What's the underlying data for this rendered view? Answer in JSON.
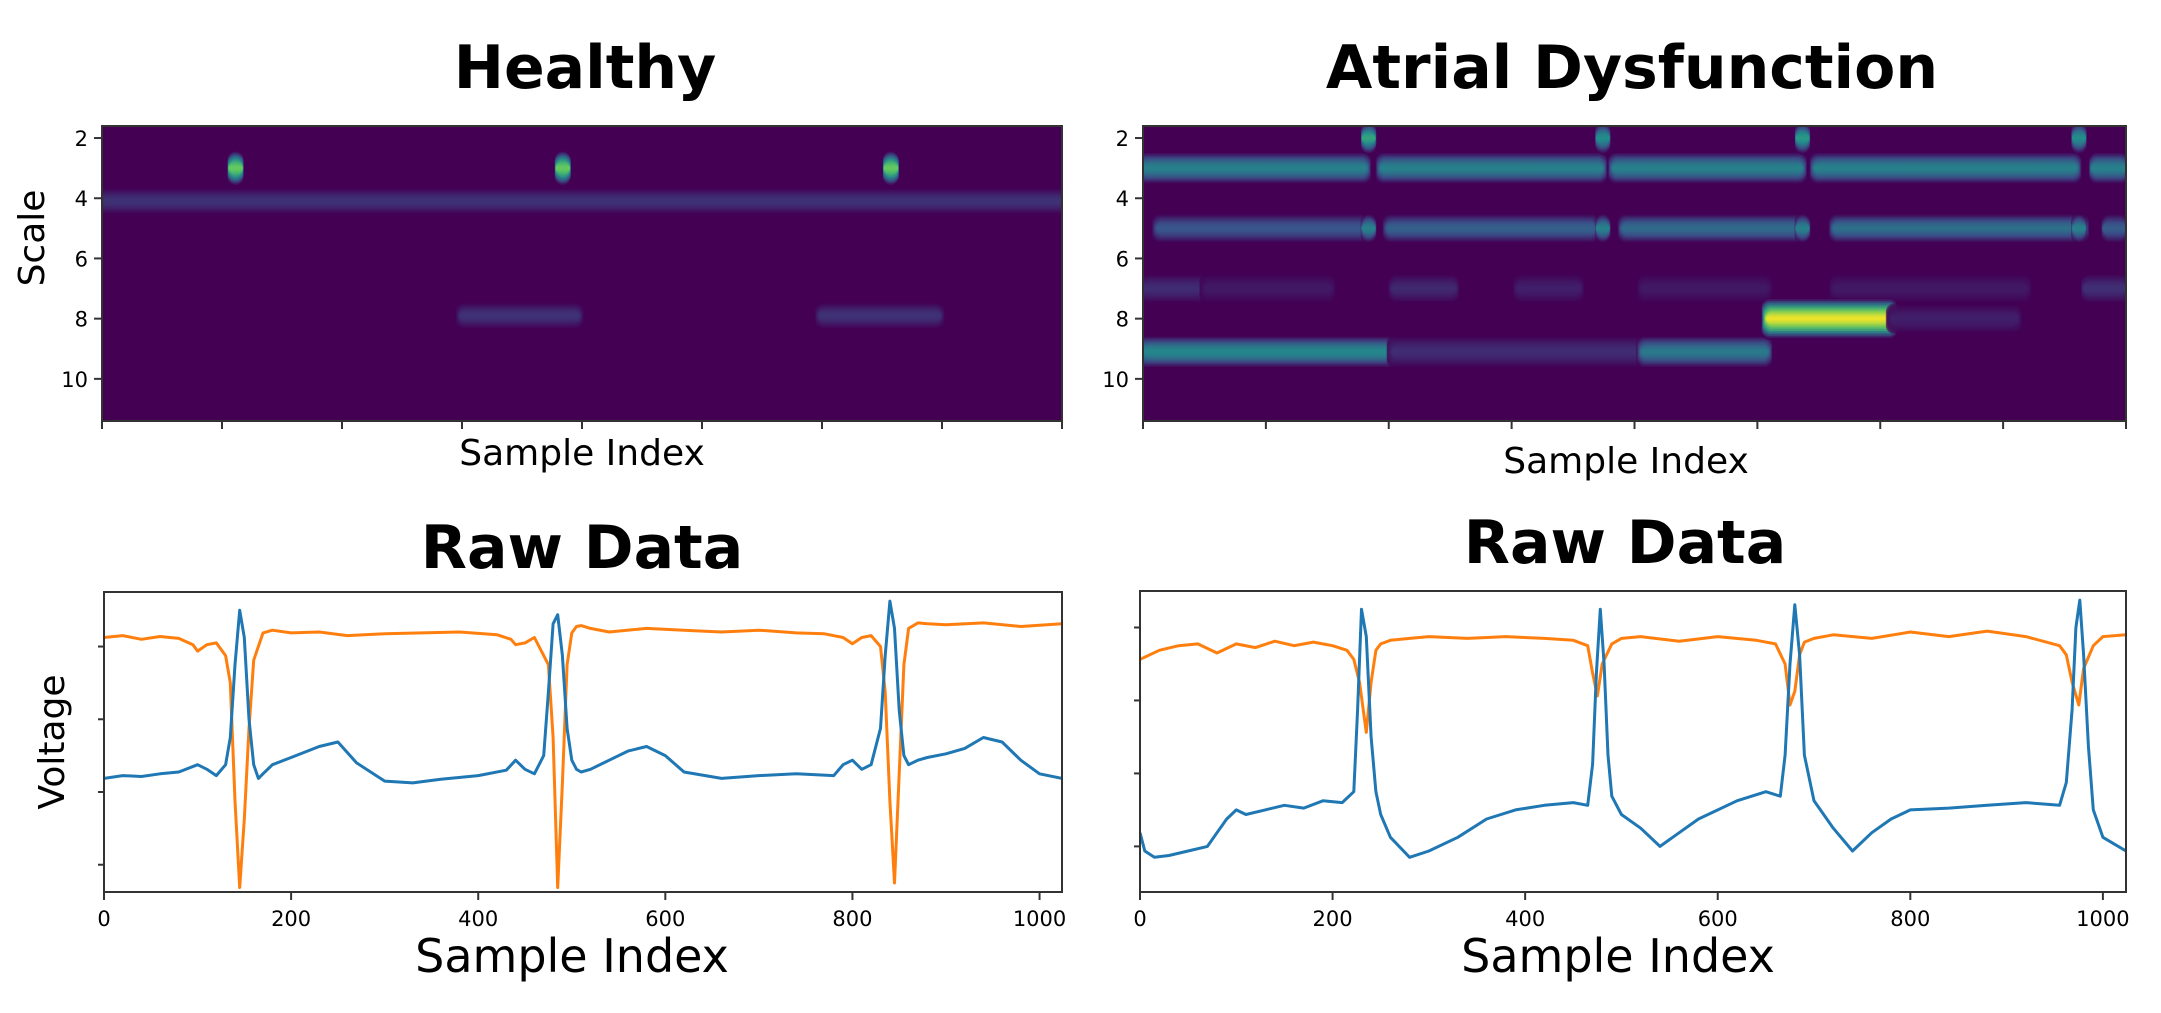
{
  "colors": {
    "heatmap_background": "#440154",
    "channel_blue": "#1f77b4",
    "channel_orange": "#ff7f0e"
  },
  "chart_data": [
    {
      "type": "heatmap",
      "panel": "healthy-scalogram",
      "title": "Healthy",
      "xlabel": "Sample Index",
      "ylabel": "Scale",
      "yticks": [
        2,
        4,
        6,
        8,
        10
      ],
      "ylim": [
        1.6,
        11.4
      ],
      "xlim": [
        0,
        1024
      ],
      "vmax": 1,
      "colormap": "viridis",
      "blobs": [
        {
          "x0": 0,
          "x1": 1024,
          "scale": 4.1,
          "intensity": 0.16,
          "spread": 0.45
        },
        {
          "x0": 135,
          "x1": 150,
          "scale": 3.0,
          "intensity": 0.78,
          "spread": 0.6
        },
        {
          "x0": 484,
          "x1": 499,
          "scale": 3.0,
          "intensity": 0.78,
          "spread": 0.6
        },
        {
          "x0": 834,
          "x1": 849,
          "scale": 3.0,
          "intensity": 0.78,
          "spread": 0.6
        },
        {
          "x0": 383,
          "x1": 508,
          "scale": 7.9,
          "intensity": 0.16,
          "spread": 0.45
        },
        {
          "x0": 766,
          "x1": 893,
          "scale": 7.9,
          "intensity": 0.16,
          "spread": 0.45
        }
      ]
    },
    {
      "type": "heatmap",
      "panel": "atrial-scalogram",
      "title": "Atrial Dysfunction",
      "xlabel": "Sample Index",
      "ylabel": "",
      "yticks": [
        2,
        4,
        6,
        8,
        10
      ],
      "ylim": [
        1.6,
        11.4
      ],
      "xlim": [
        0,
        1024
      ],
      "vmax": 1,
      "colormap": "viridis",
      "blobs": [
        {
          "x0": 0,
          "x1": 232,
          "scale": 3.0,
          "intensity": 0.45,
          "spread": 0.55
        },
        {
          "x0": 248,
          "x1": 478,
          "scale": 3.0,
          "intensity": 0.45,
          "spread": 0.55
        },
        {
          "x0": 490,
          "x1": 686,
          "scale": 3.0,
          "intensity": 0.45,
          "spread": 0.55
        },
        {
          "x0": 700,
          "x1": 972,
          "scale": 3.0,
          "intensity": 0.45,
          "spread": 0.55
        },
        {
          "x0": 988,
          "x1": 1024,
          "scale": 3.0,
          "intensity": 0.45,
          "spread": 0.55
        },
        {
          "x0": 15,
          "x1": 230,
          "scale": 5.0,
          "intensity": 0.28,
          "spread": 0.5
        },
        {
          "x0": 255,
          "x1": 470,
          "scale": 5.0,
          "intensity": 0.32,
          "spread": 0.5
        },
        {
          "x0": 500,
          "x1": 690,
          "scale": 5.0,
          "intensity": 0.36,
          "spread": 0.5
        },
        {
          "x0": 720,
          "x1": 980,
          "scale": 5.0,
          "intensity": 0.38,
          "spread": 0.5
        },
        {
          "x0": 1000,
          "x1": 1024,
          "scale": 5.0,
          "intensity": 0.3,
          "spread": 0.5
        },
        {
          "x0": 228,
          "x1": 242,
          "scale": 2.0,
          "intensity": 0.6,
          "spread": 0.55
        },
        {
          "x0": 472,
          "x1": 486,
          "scale": 2.0,
          "intensity": 0.5,
          "spread": 0.55
        },
        {
          "x0": 680,
          "x1": 694,
          "scale": 2.0,
          "intensity": 0.55,
          "spread": 0.55
        },
        {
          "x0": 968,
          "x1": 982,
          "scale": 2.0,
          "intensity": 0.5,
          "spread": 0.55
        },
        {
          "x0": 228,
          "x1": 242,
          "scale": 5.0,
          "intensity": 0.45,
          "spread": 0.5
        },
        {
          "x0": 472,
          "x1": 486,
          "scale": 5.0,
          "intensity": 0.45,
          "spread": 0.5
        },
        {
          "x0": 680,
          "x1": 694,
          "scale": 5.0,
          "intensity": 0.45,
          "spread": 0.5
        },
        {
          "x0": 968,
          "x1": 982,
          "scale": 5.0,
          "intensity": 0.45,
          "spread": 0.5
        },
        {
          "x0": 0,
          "x1": 65,
          "scale": 7.0,
          "intensity": 0.14,
          "spread": 0.5
        },
        {
          "x0": 65,
          "x1": 195,
          "scale": 7.0,
          "intensity": 0.08,
          "spread": 0.5
        },
        {
          "x0": 260,
          "x1": 325,
          "scale": 7.0,
          "intensity": 0.13,
          "spread": 0.5
        },
        {
          "x0": 390,
          "x1": 455,
          "scale": 7.0,
          "intensity": 0.1,
          "spread": 0.5
        },
        {
          "x0": 520,
          "x1": 650,
          "scale": 7.0,
          "intensity": 0.08,
          "spread": 0.5
        },
        {
          "x0": 720,
          "x1": 920,
          "scale": 7.0,
          "intensity": 0.08,
          "spread": 0.5
        },
        {
          "x0": 980,
          "x1": 1024,
          "scale": 7.0,
          "intensity": 0.15,
          "spread": 0.5
        },
        {
          "x0": 0,
          "x1": 260,
          "scale": 9.1,
          "intensity": 0.48,
          "spread": 0.55
        },
        {
          "x0": 260,
          "x1": 520,
          "scale": 9.1,
          "intensity": 0.14,
          "spread": 0.55
        },
        {
          "x0": 520,
          "x1": 650,
          "scale": 9.1,
          "intensity": 0.42,
          "spread": 0.55
        },
        {
          "x0": 650,
          "x1": 780,
          "scale": 8.0,
          "intensity": 1.0,
          "spread": 0.7
        },
        {
          "x0": 780,
          "x1": 910,
          "scale": 8.0,
          "intensity": 0.1,
          "spread": 0.5
        }
      ]
    },
    {
      "type": "line",
      "panel": "healthy-raw",
      "title": "Raw Data",
      "xlabel": "Sample Index",
      "ylabel": "Voltage",
      "xticks": [
        0,
        200,
        400,
        600,
        800,
        1000
      ],
      "xlim": [
        0,
        1024
      ],
      "ylim": [
        -2.0,
        1.3
      ],
      "yticks": [
        -1.7,
        -0.9,
        -0.1,
        0.7
      ],
      "series": [
        {
          "name": "lead-orange",
          "color": "#ff7f0e",
          "x": [
            0,
            20,
            40,
            60,
            80,
            95,
            100,
            110,
            120,
            130,
            135,
            140,
            145,
            150,
            155,
            160,
            170,
            180,
            200,
            230,
            260,
            300,
            340,
            380,
            420,
            435,
            440,
            450,
            460,
            475,
            480,
            485,
            490,
            495,
            500,
            505,
            510,
            520,
            540,
            580,
            620,
            660,
            700,
            740,
            770,
            790,
            800,
            810,
            820,
            830,
            835,
            840,
            845,
            850,
            855,
            860,
            870,
            880,
            900,
            940,
            980,
            1024
          ],
          "y": [
            0.8,
            0.82,
            0.78,
            0.81,
            0.79,
            0.72,
            0.65,
            0.72,
            0.74,
            0.6,
            0.3,
            -1.0,
            -1.95,
            -1.2,
            -0.2,
            0.55,
            0.85,
            0.88,
            0.85,
            0.86,
            0.82,
            0.84,
            0.85,
            0.86,
            0.83,
            0.78,
            0.72,
            0.74,
            0.8,
            0.5,
            -0.3,
            -1.95,
            -0.8,
            0.5,
            0.85,
            0.92,
            0.93,
            0.9,
            0.86,
            0.9,
            0.88,
            0.86,
            0.88,
            0.85,
            0.84,
            0.8,
            0.73,
            0.8,
            0.82,
            0.7,
            0.2,
            -1.0,
            -1.9,
            -0.7,
            0.5,
            0.9,
            0.96,
            0.95,
            0.94,
            0.96,
            0.92,
            0.95
          ]
        },
        {
          "name": "lead-blue",
          "color": "#1f77b4",
          "x": [
            0,
            20,
            40,
            60,
            80,
            100,
            110,
            120,
            130,
            135,
            140,
            145,
            150,
            155,
            160,
            165,
            170,
            180,
            200,
            230,
            250,
            270,
            300,
            330,
            360,
            400,
            430,
            440,
            450,
            460,
            470,
            475,
            480,
            485,
            490,
            495,
            500,
            505,
            510,
            520,
            540,
            560,
            580,
            600,
            620,
            660,
            700,
            740,
            780,
            790,
            800,
            810,
            820,
            830,
            835,
            840,
            845,
            850,
            855,
            860,
            870,
            880,
            900,
            920,
            940,
            960,
            980,
            1000,
            1024
          ],
          "y": [
            -0.75,
            -0.72,
            -0.73,
            -0.7,
            -0.68,
            -0.6,
            -0.65,
            -0.72,
            -0.6,
            -0.3,
            0.5,
            1.1,
            0.8,
            -0.1,
            -0.6,
            -0.75,
            -0.7,
            -0.6,
            -0.52,
            -0.4,
            -0.35,
            -0.58,
            -0.78,
            -0.8,
            -0.76,
            -0.72,
            -0.66,
            -0.55,
            -0.65,
            -0.7,
            -0.5,
            0.2,
            0.95,
            1.05,
            0.6,
            -0.2,
            -0.55,
            -0.65,
            -0.68,
            -0.65,
            -0.55,
            -0.45,
            -0.4,
            -0.5,
            -0.68,
            -0.75,
            -0.72,
            -0.7,
            -0.72,
            -0.6,
            -0.55,
            -0.65,
            -0.6,
            -0.2,
            0.6,
            1.2,
            0.9,
            0.0,
            -0.5,
            -0.6,
            -0.55,
            -0.52,
            -0.48,
            -0.42,
            -0.3,
            -0.35,
            -0.55,
            -0.7,
            -0.75
          ]
        }
      ]
    },
    {
      "type": "line",
      "panel": "atrial-raw",
      "title": "Raw Data",
      "xlabel": "Sample Index",
      "ylabel": "",
      "xticks": [
        0,
        200,
        400,
        600,
        800,
        1000
      ],
      "xlim": [
        0,
        1024
      ],
      "ylim": [
        -2.0,
        1.3
      ],
      "yticks": [
        -1.5,
        -0.7,
        0.1,
        0.9
      ],
      "series": [
        {
          "name": "lead-orange",
          "color": "#ff7f0e",
          "x": [
            0,
            20,
            40,
            60,
            80,
            100,
            120,
            140,
            160,
            180,
            200,
            215,
            222,
            228,
            235,
            240,
            245,
            250,
            260,
            280,
            300,
            340,
            380,
            420,
            450,
            465,
            470,
            475,
            480,
            490,
            500,
            520,
            560,
            600,
            640,
            660,
            670,
            675,
            680,
            685,
            690,
            700,
            720,
            760,
            800,
            840,
            880,
            920,
            955,
            962,
            968,
            975,
            980,
            990,
            1000,
            1024
          ],
          "y": [
            0.55,
            0.65,
            0.7,
            0.72,
            0.62,
            0.72,
            0.68,
            0.75,
            0.7,
            0.74,
            0.7,
            0.65,
            0.55,
            0.3,
            -0.25,
            0.3,
            0.65,
            0.72,
            0.76,
            0.78,
            0.8,
            0.78,
            0.8,
            0.78,
            0.76,
            0.7,
            0.4,
            0.15,
            0.5,
            0.72,
            0.78,
            0.8,
            0.75,
            0.8,
            0.76,
            0.72,
            0.5,
            0.05,
            0.2,
            0.6,
            0.74,
            0.78,
            0.82,
            0.78,
            0.85,
            0.8,
            0.86,
            0.8,
            0.7,
            0.6,
            0.3,
            0.05,
            0.45,
            0.7,
            0.8,
            0.82
          ]
        },
        {
          "name": "lead-blue",
          "color": "#1f77b4",
          "x": [
            0,
            5,
            15,
            30,
            50,
            70,
            80,
            90,
            100,
            110,
            130,
            150,
            170,
            190,
            210,
            222,
            226,
            230,
            235,
            240,
            245,
            250,
            260,
            280,
            300,
            330,
            360,
            390,
            420,
            450,
            465,
            470,
            474,
            478,
            482,
            486,
            490,
            500,
            520,
            540,
            560,
            580,
            620,
            650,
            665,
            670,
            675,
            680,
            685,
            690,
            700,
            720,
            740,
            760,
            780,
            800,
            840,
            880,
            920,
            955,
            962,
            968,
            972,
            976,
            980,
            985,
            990,
            1000,
            1024
          ],
          "y": [
            -1.35,
            -1.55,
            -1.62,
            -1.6,
            -1.55,
            -1.5,
            -1.35,
            -1.2,
            -1.1,
            -1.15,
            -1.1,
            -1.05,
            -1.08,
            -1.0,
            -1.02,
            -0.9,
            0.0,
            1.1,
            0.8,
            -0.3,
            -0.9,
            -1.15,
            -1.4,
            -1.62,
            -1.55,
            -1.4,
            -1.2,
            -1.1,
            -1.05,
            -1.02,
            -1.05,
            -0.6,
            0.4,
            1.1,
            0.5,
            -0.5,
            -0.95,
            -1.15,
            -1.3,
            -1.5,
            -1.35,
            -1.2,
            -1.0,
            -0.9,
            -0.95,
            -0.5,
            0.5,
            1.15,
            0.6,
            -0.5,
            -1.0,
            -1.3,
            -1.55,
            -1.35,
            -1.2,
            -1.1,
            -1.08,
            -1.05,
            -1.02,
            -1.05,
            -0.8,
            0.0,
            0.9,
            1.2,
            0.6,
            -0.4,
            -1.1,
            -1.4,
            -1.55
          ]
        }
      ]
    }
  ]
}
